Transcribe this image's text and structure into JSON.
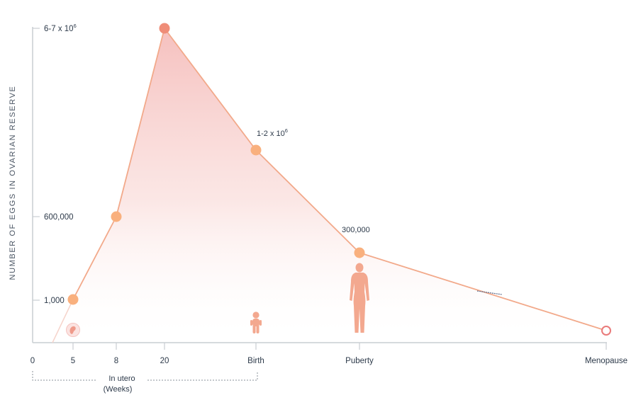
{
  "chart_data": {
    "type": "line",
    "title": "",
    "ylabel": "NUMBER OF EGGS IN OVARIAN RESERVE",
    "xlabel": "",
    "y_tick_labels": [
      "1,000",
      "600,000",
      "6-7 x 10",
      "6"
    ],
    "x_tick_labels": [
      "0",
      "5",
      "8",
      "20",
      "Birth",
      "Puberty",
      "Menopause"
    ],
    "in_utero_label": [
      "In utero",
      "(Weeks)"
    ],
    "points": [
      {
        "x": "5",
        "y": "1,000"
      },
      {
        "x": "8",
        "y": "600,000"
      },
      {
        "x": "20",
        "y": "6-7 x 10^6"
      },
      {
        "x": "Birth",
        "y": "1-2 x 10^6"
      },
      {
        "x": "Puberty",
        "y": "300,000"
      },
      {
        "x": "Menopause",
        "y": "0"
      }
    ],
    "data_labels": [
      {
        "point": "Birth",
        "text": "1-2 x 10",
        "sup": "6"
      },
      {
        "point": "Puberty",
        "text": "300,000",
        "sup": ""
      }
    ],
    "icons": [
      "embryo-icon",
      "baby-icon",
      "woman-icon"
    ],
    "colors": {
      "line": "#f2a98a",
      "point": "#f9b07e",
      "peak": "#ef8d78",
      "fill": "#f6c2bf",
      "axis": "#c9cdd2",
      "end_point": "#e97a7a"
    }
  }
}
